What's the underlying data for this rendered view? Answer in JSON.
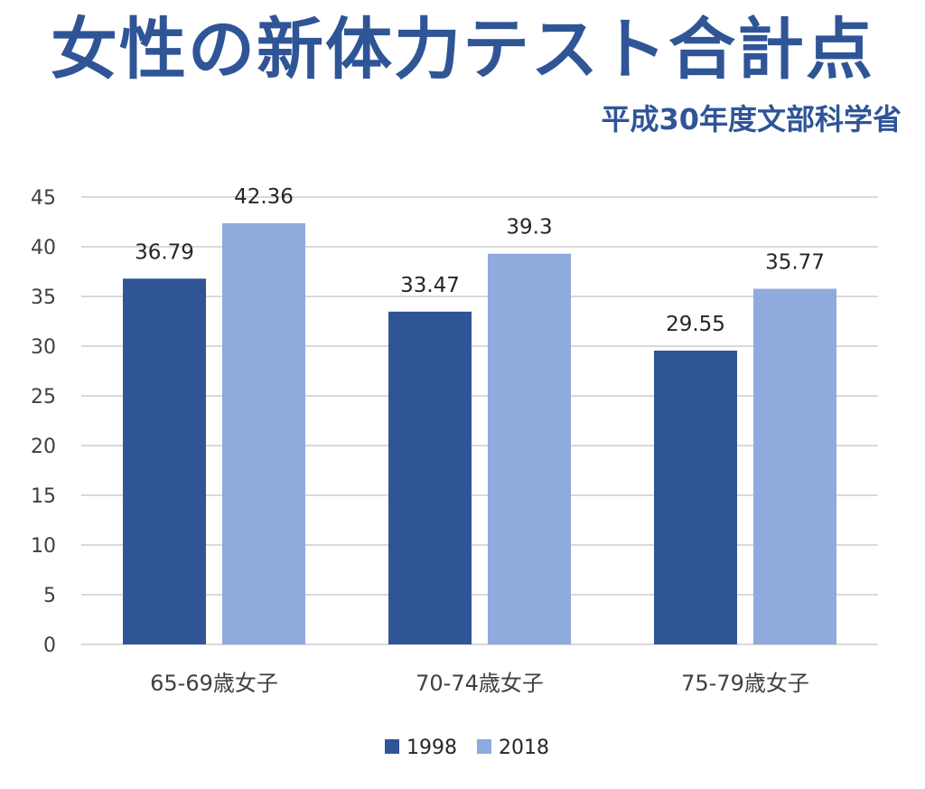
{
  "title": "女性の新体力テスト合計点",
  "subtitle": "平成30年度文部科学省",
  "chart_data": {
    "type": "bar",
    "categories": [
      "65-69歳女子",
      "70-74歳女子",
      "75-79歳女子"
    ],
    "series": [
      {
        "name": "1998",
        "values": [
          36.79,
          33.47,
          29.55
        ],
        "color": "#2f5597"
      },
      {
        "name": "2018",
        "values": [
          42.36,
          39.3,
          35.77
        ],
        "color": "#8faadc"
      }
    ],
    "ylim": [
      0,
      45
    ],
    "yticks": [
      0,
      5,
      10,
      15,
      20,
      25,
      30,
      35,
      40,
      45
    ],
    "data_labels": true,
    "grid": true,
    "legend": "bottom-center",
    "gridColor": "#d9d9d9"
  }
}
